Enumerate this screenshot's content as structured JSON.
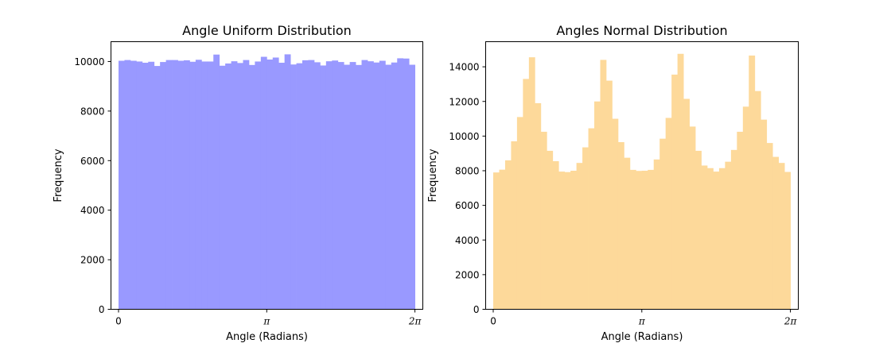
{
  "chart_data": [
    {
      "type": "bar",
      "title": "Angle Uniform Distribution",
      "xlabel": "Angle (Radians)",
      "ylabel": "Frequency",
      "bar_color": "#9999ff",
      "xlim": [
        -0.16,
        6.45
      ],
      "ylim": [
        0,
        10800
      ],
      "xticks": [
        {
          "value": 0,
          "label": "0"
        },
        {
          "value": 3.14159,
          "label": "π"
        },
        {
          "value": 6.28318,
          "label": "2π"
        }
      ],
      "yticks": [
        {
          "value": 0,
          "label": "0"
        },
        {
          "value": 2000,
          "label": "2000"
        },
        {
          "value": 4000,
          "label": "4000"
        },
        {
          "value": 6000,
          "label": "6000"
        },
        {
          "value": 8000,
          "label": "8000"
        },
        {
          "value": 10000,
          "label": "10000"
        }
      ],
      "bin_range": [
        0,
        6.28318
      ],
      "values": [
        10030,
        10060,
        10030,
        10000,
        9950,
        9990,
        9820,
        9980,
        10060,
        10060,
        10030,
        10050,
        9990,
        10070,
        10000,
        10000,
        10280,
        9830,
        9920,
        10010,
        9940,
        10060,
        9860,
        10000,
        10190,
        10080,
        10160,
        9950,
        10290,
        9880,
        9930,
        10050,
        10060,
        9970,
        9840,
        10010,
        10040,
        9980,
        9870,
        9980,
        9860,
        10060,
        10010,
        9960,
        10030,
        9870,
        9960,
        10130,
        10120,
        9870
      ]
    },
    {
      "type": "bar",
      "title": "Angles Normal Distribution",
      "xlabel": "Angle (Radians)",
      "ylabel": "Frequency",
      "bar_color": "#fdd99a",
      "xlim": [
        -0.16,
        6.45
      ],
      "ylim": [
        0,
        15450
      ],
      "xticks": [
        {
          "value": 0,
          "label": "0"
        },
        {
          "value": 3.14159,
          "label": "π"
        },
        {
          "value": 6.28318,
          "label": "2π"
        }
      ],
      "yticks": [
        {
          "value": 0,
          "label": "0"
        },
        {
          "value": 2000,
          "label": "2000"
        },
        {
          "value": 4000,
          "label": "4000"
        },
        {
          "value": 6000,
          "label": "6000"
        },
        {
          "value": 8000,
          "label": "8000"
        },
        {
          "value": 10000,
          "label": "10000"
        },
        {
          "value": 12000,
          "label": "12000"
        },
        {
          "value": 14000,
          "label": "14000"
        }
      ],
      "bin_range": [
        0,
        6.28318
      ],
      "values": [
        7900,
        8060,
        8600,
        9700,
        11100,
        13300,
        14550,
        11900,
        10250,
        9150,
        8550,
        7950,
        7920,
        8000,
        8450,
        9350,
        10450,
        12000,
        14400,
        13200,
        11000,
        9650,
        8750,
        8050,
        7990,
        8000,
        8050,
        8650,
        9850,
        11050,
        13550,
        14750,
        12150,
        10550,
        9150,
        8300,
        8150,
        7950,
        8150,
        8520,
        9200,
        10250,
        11700,
        14650,
        12600,
        10950,
        9600,
        8800,
        8450,
        7930
      ]
    }
  ]
}
